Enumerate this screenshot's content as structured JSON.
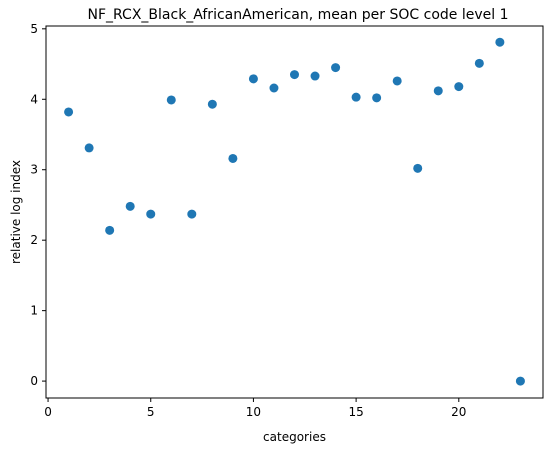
{
  "chart_data": {
    "type": "scatter",
    "title": "NF_RCX_Black_AfricanAmerican, mean per SOC code level 1",
    "xlabel": "categories",
    "ylabel": "relative log index",
    "xlim": [
      -0.1,
      24.1
    ],
    "ylim": [
      -0.24,
      5.04
    ],
    "xticks": [
      0,
      5,
      10,
      15,
      20
    ],
    "yticks": [
      0,
      1,
      2,
      3,
      4,
      5
    ],
    "grid": false,
    "color": "#1f77b4",
    "points": [
      {
        "x": 1,
        "y": 3.82
      },
      {
        "x": 2,
        "y": 3.31
      },
      {
        "x": 3,
        "y": 2.14
      },
      {
        "x": 4,
        "y": 2.48
      },
      {
        "x": 5,
        "y": 2.37
      },
      {
        "x": 6,
        "y": 3.99
      },
      {
        "x": 7,
        "y": 2.37
      },
      {
        "x": 8,
        "y": 3.93
      },
      {
        "x": 9,
        "y": 3.16
      },
      {
        "x": 10,
        "y": 4.29
      },
      {
        "x": 11,
        "y": 4.16
      },
      {
        "x": 12,
        "y": 4.35
      },
      {
        "x": 13,
        "y": 4.33
      },
      {
        "x": 14,
        "y": 4.45
      },
      {
        "x": 15,
        "y": 4.03
      },
      {
        "x": 16,
        "y": 4.02
      },
      {
        "x": 17,
        "y": 4.26
      },
      {
        "x": 18,
        "y": 3.02
      },
      {
        "x": 19,
        "y": 4.12
      },
      {
        "x": 20,
        "y": 4.18
      },
      {
        "x": 21,
        "y": 4.51
      },
      {
        "x": 22,
        "y": 4.81
      },
      {
        "x": 23,
        "y": 0.0
      }
    ]
  }
}
